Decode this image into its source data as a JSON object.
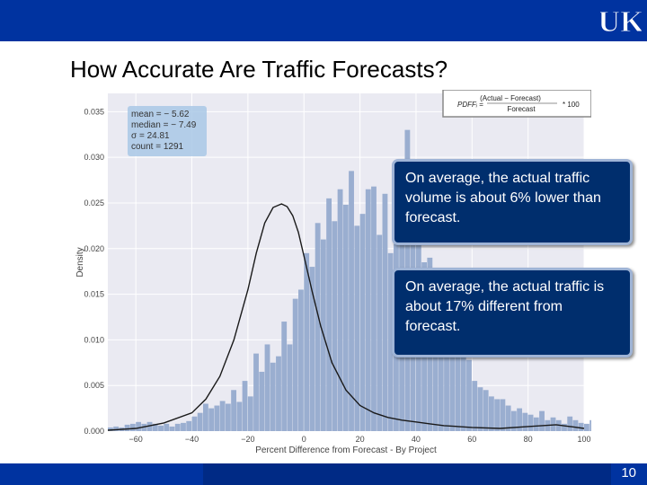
{
  "slide": {
    "title": "How Accurate Are Traffic Forecasts?",
    "page_number": "10",
    "logo_text": "UK"
  },
  "callouts": [
    "On average, the actual traffic volume is about 6% lower than forecast.",
    "On average, the actual traffic is about 17% different from forecast."
  ],
  "colors": {
    "brand_blue": "#0033a0",
    "callout_bg": "#002e6d",
    "hist_fill": "#9aaed0",
    "plot_bg": "#eaeaf2",
    "kde_line": "#1a1a1a"
  },
  "chart_data": {
    "type": "bar",
    "subtype": "histogram with kde line",
    "xlabel": "Percent Difference from Forecast - By Project",
    "ylabel": "Density",
    "xlim": [
      -70,
      100
    ],
    "ylim": [
      0,
      0.037
    ],
    "xticks": [
      "-60",
      "-40",
      "-20",
      "0",
      "20",
      "40",
      "60",
      "80",
      "100"
    ],
    "yticks": [
      "0.000",
      "0.005",
      "0.010",
      "0.015",
      "0.020",
      "0.025",
      "0.030",
      "0.035"
    ],
    "grid": true,
    "stats_box": {
      "position": "top-left",
      "lines": [
        "mean = − 5.62",
        "median = − 7.49",
        "σ = 24.81",
        "count = 1291"
      ]
    },
    "formula_box": {
      "position": "top-right",
      "lhs": "PDFFᵢ =",
      "numerator": "(Actual − Forecast)",
      "denominator": "Forecast",
      "multiplier": "* 100"
    },
    "bin_width": 2,
    "bins_start": -70,
    "values": [
      0.0004,
      0.0005,
      0.0004,
      0.0007,
      0.0008,
      0.001,
      0.0008,
      0.001,
      0.0008,
      0.0006,
      0.0008,
      0.0005,
      0.0008,
      0.0009,
      0.0011,
      0.0016,
      0.002,
      0.003,
      0.0025,
      0.0028,
      0.0033,
      0.003,
      0.0045,
      0.0032,
      0.0055,
      0.0038,
      0.0085,
      0.0065,
      0.0095,
      0.0075,
      0.0082,
      0.012,
      0.0095,
      0.0145,
      0.0155,
      0.0195,
      0.018,
      0.0228,
      0.021,
      0.0255,
      0.023,
      0.0265,
      0.0248,
      0.0285,
      0.0225,
      0.0238,
      0.0265,
      0.0268,
      0.0215,
      0.026,
      0.0195,
      0.0205,
      0.0255,
      0.033,
      0.0265,
      0.0225,
      0.0185,
      0.019,
      0.016,
      0.0145,
      0.012,
      0.0098,
      0.0092,
      0.0085,
      0.0078,
      0.0055,
      0.0048,
      0.0045,
      0.0038,
      0.0035,
      0.0035,
      0.0028,
      0.0022,
      0.0025,
      0.002,
      0.0018,
      0.0015,
      0.0022,
      0.0012,
      0.0015,
      0.0012,
      0.0008,
      0.0016,
      0.0012,
      0.0009,
      0.0008,
      0.0012,
      0.0006,
      0.0013,
      0.001,
      0.0007,
      0.0006,
      0.0008,
      0.0005,
      0.0005,
      0.0006,
      0.0003,
      0.0002,
      0.0002,
      0.0002,
      0.0003,
      0.0002,
      0.0002,
      0.0002,
      0.0002,
      0.0003,
      0.0002,
      0.0004,
      0.0003,
      0.0002,
      0.0004,
      0.0003,
      0.0005,
      0.0004,
      0.0003,
      0.0005,
      0.0003,
      0.0002,
      0.0002,
      0.0003
    ],
    "kde": {
      "x": [
        -70,
        -60,
        -50,
        -40,
        -35,
        -30,
        -25,
        -20,
        -17,
        -14,
        -11,
        -8,
        -6,
        -4,
        -2,
        0,
        3,
        6,
        10,
        15,
        20,
        25,
        30,
        35,
        40,
        45,
        50,
        55,
        60,
        70,
        80,
        90,
        95,
        100
      ],
      "y": [
        0.0001,
        0.0003,
        0.0009,
        0.002,
        0.0035,
        0.006,
        0.01,
        0.0155,
        0.0195,
        0.0228,
        0.0245,
        0.0249,
        0.0246,
        0.0236,
        0.0218,
        0.0192,
        0.0152,
        0.0115,
        0.0075,
        0.0045,
        0.0028,
        0.002,
        0.0015,
        0.0012,
        0.001,
        0.0008,
        0.0006,
        0.0005,
        0.0004,
        0.0003,
        0.0005,
        0.0007,
        0.0005,
        0.0003
      ]
    }
  }
}
